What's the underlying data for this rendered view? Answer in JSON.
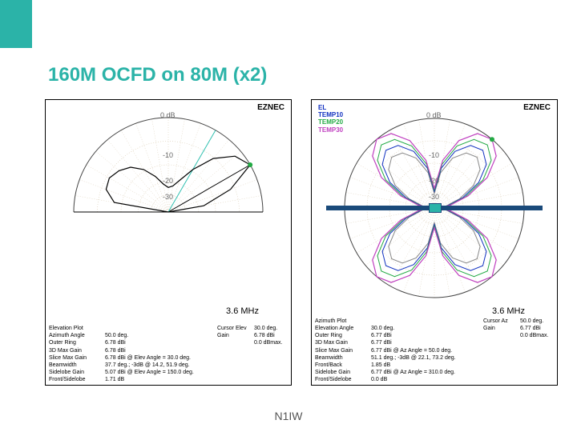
{
  "title": "160M OCFD on 80M (x2)",
  "footer": "N1IW",
  "common": {
    "software": "EZNEC",
    "freq": "3.6 MHz",
    "grid_color": "#c8b8a0",
    "axis_color": "#888888",
    "background": "#ffffff",
    "rings_db": [
      "0 dB",
      "-10",
      "-20",
      "-30"
    ]
  },
  "chart1": {
    "marker": {
      "angle_deg": 30,
      "r": 1.0,
      "color": "#22aa44"
    },
    "lines": [
      {
        "color": "#000000",
        "width": 1,
        "angle_deg": 30
      },
      {
        "color": "#30c0b0",
        "width": 1,
        "angle_deg": 60
      }
    ],
    "pattern": {
      "color": "#000000",
      "width": 1.2,
      "points_deg_r": [
        [
          0,
          0.0
        ],
        [
          10,
          0.38
        ],
        [
          20,
          0.7
        ],
        [
          30,
          1.0
        ],
        [
          40,
          0.92
        ],
        [
          50,
          0.74
        ],
        [
          60,
          0.52
        ],
        [
          70,
          0.36
        ],
        [
          80,
          0.28
        ],
        [
          90,
          0.26
        ],
        [
          100,
          0.3
        ],
        [
          110,
          0.4
        ],
        [
          120,
          0.52
        ],
        [
          130,
          0.62
        ],
        [
          140,
          0.68
        ],
        [
          150,
          0.72
        ],
        [
          160,
          0.7
        ],
        [
          170,
          0.58
        ],
        [
          180,
          0.0
        ]
      ]
    },
    "stats_left": [
      [
        "Elevation Plot",
        ""
      ],
      [
        "Azimuth Angle",
        "50.0 deg."
      ],
      [
        "Outer Ring",
        "6.78 dBi"
      ],
      [
        "",
        ""
      ],
      [
        "3D Max Gain",
        "6.78 dBi"
      ],
      [
        "Slice Max Gain",
        "6.78 dBi @ Elev Angle = 30.0 deg."
      ],
      [
        "Beamwidth",
        "37.7 deg.; -3dB @ 14.2, 51.9 deg."
      ],
      [
        "Sidelobe Gain",
        "5.07 dBi @ Elev Angle = 150.0 deg."
      ],
      [
        "Front/Sidelobe",
        "1.71 dB"
      ]
    ],
    "stats_right": [
      [
        "Cursor Elev",
        "30.0 deg."
      ],
      [
        "Gain",
        "6.78 dBi"
      ],
      [
        "",
        "0.0 dBmax."
      ]
    ]
  },
  "chart2": {
    "legend": [
      {
        "label": "EL",
        "color": "#1030c0"
      },
      {
        "label": "TEMP10",
        "color": "#1030c0"
      },
      {
        "label": "TEMP20",
        "color": "#22aa44"
      },
      {
        "label": "TEMP30",
        "color": "#c040c0"
      }
    ],
    "marker": {
      "angle_deg": 50,
      "r": 1.0,
      "color": "#22aa44"
    },
    "patterns": [
      {
        "color": "#888888",
        "width": 1.0,
        "scale": 0.74
      },
      {
        "color": "#1030c0",
        "width": 1.0,
        "scale": 0.84
      },
      {
        "color": "#22aa44",
        "width": 1.0,
        "scale": 0.92
      },
      {
        "color": "#c040c0",
        "width": 1.2,
        "scale": 1.0
      }
    ],
    "butterfly_deg_r": [
      [
        0,
        0.04
      ],
      [
        10,
        0.18
      ],
      [
        20,
        0.4
      ],
      [
        30,
        0.68
      ],
      [
        40,
        0.9
      ],
      [
        50,
        1.0
      ],
      [
        60,
        0.96
      ],
      [
        70,
        0.8
      ],
      [
        80,
        0.54
      ],
      [
        90,
        0.22
      ],
      [
        100,
        0.54
      ],
      [
        110,
        0.8
      ],
      [
        120,
        0.96
      ],
      [
        130,
        1.0
      ],
      [
        140,
        0.9
      ],
      [
        150,
        0.68
      ],
      [
        160,
        0.4
      ],
      [
        170,
        0.18
      ],
      [
        180,
        0.04
      ],
      [
        190,
        0.18
      ],
      [
        200,
        0.4
      ],
      [
        210,
        0.68
      ],
      [
        220,
        0.9
      ],
      [
        230,
        1.0
      ],
      [
        240,
        0.96
      ],
      [
        250,
        0.8
      ],
      [
        260,
        0.54
      ],
      [
        270,
        0.22
      ],
      [
        280,
        0.54
      ],
      [
        290,
        0.8
      ],
      [
        300,
        0.96
      ],
      [
        310,
        1.0
      ],
      [
        320,
        0.9
      ],
      [
        330,
        0.68
      ],
      [
        340,
        0.4
      ],
      [
        350,
        0.18
      ]
    ],
    "stats_left": [
      [
        "Azimuth Plot",
        ""
      ],
      [
        "Elevation Angle",
        "30.0 deg."
      ],
      [
        "Outer Ring",
        "6.77 dBi"
      ],
      [
        "",
        ""
      ],
      [
        "3D Max Gain",
        "6.77 dBi"
      ],
      [
        "Slice Max Gain",
        "6.77 dBi @ Az Angle = 50.0 deg."
      ],
      [
        "Beamwidth",
        "51.1 deg.; -3dB @ 22.1, 73.2 deg."
      ],
      [
        "Front/Back",
        "1.85 dB"
      ],
      [
        "Sidelobe Gain",
        "6.77 dBi @ Az Angle = 310.0 deg."
      ],
      [
        "Front/Sidelobe",
        "0.0 dB"
      ]
    ],
    "stats_right": [
      [
        "Cursor Az",
        "50.0 deg."
      ],
      [
        "Gain",
        "6.77 dBi"
      ],
      [
        "",
        "0.0 dBmax."
      ]
    ]
  }
}
